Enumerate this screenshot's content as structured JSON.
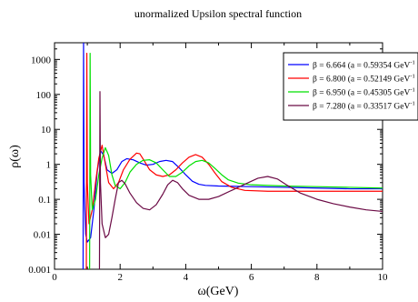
{
  "chart_data": {
    "type": "line",
    "title": "unormalized Upsilon spectral function",
    "xlabel": "ω(GeV)",
    "ylabel": "ρ(ω)",
    "xlim": [
      0,
      10
    ],
    "ylim": [
      0.001,
      3000
    ],
    "yscale": "log",
    "grid": false,
    "legend_position": "top-right",
    "x_ticks": [
      0,
      2,
      4,
      6,
      8,
      10
    ],
    "x_tick_labels": [
      "0",
      "2",
      "4",
      "6",
      "8",
      "10"
    ],
    "y_ticks": [
      0.001,
      0.01,
      0.1,
      1,
      10,
      100,
      1000
    ],
    "y_tick_labels": [
      "0.001",
      "0.01",
      "0.1",
      "1",
      "10",
      "100",
      "1000"
    ],
    "series": [
      {
        "name": "β = 6.664 (a = 0.59354 GeV",
        "name_sup": "-1",
        "color": "#0000ff",
        "points": [
          [
            0.87,
            0.001
          ],
          [
            0.885,
            3000
          ],
          [
            0.9,
            0.3
          ],
          [
            0.95,
            0.01
          ],
          [
            1.0,
            0.006
          ],
          [
            1.1,
            0.008
          ],
          [
            1.2,
            0.05
          ],
          [
            1.3,
            0.6
          ],
          [
            1.4,
            2.5
          ],
          [
            1.5,
            1.8
          ],
          [
            1.6,
            0.7
          ],
          [
            1.75,
            0.55
          ],
          [
            1.9,
            0.7
          ],
          [
            2.05,
            1.2
          ],
          [
            2.2,
            1.45
          ],
          [
            2.4,
            1.35
          ],
          [
            2.6,
            1.1
          ],
          [
            2.8,
            0.95
          ],
          [
            3.0,
            1.0
          ],
          [
            3.2,
            1.2
          ],
          [
            3.4,
            1.3
          ],
          [
            3.6,
            1.2
          ],
          [
            3.8,
            0.8
          ],
          [
            4.0,
            0.5
          ],
          [
            4.2,
            0.33
          ],
          [
            4.4,
            0.27
          ],
          [
            4.6,
            0.25
          ],
          [
            5.0,
            0.24
          ],
          [
            6.0,
            0.23
          ],
          [
            7.0,
            0.22
          ],
          [
            8.0,
            0.21
          ],
          [
            9.0,
            0.2
          ],
          [
            10.0,
            0.2
          ]
        ]
      },
      {
        "name": "β = 6.800 (a = 0.52149 GeV",
        "name_sup": "-1",
        "color": "#ff0000",
        "points": [
          [
            0.97,
            0.001
          ],
          [
            0.985,
            1500
          ],
          [
            1.0,
            0.3
          ],
          [
            1.05,
            0.02
          ],
          [
            1.15,
            0.05
          ],
          [
            1.25,
            0.3
          ],
          [
            1.35,
            1.5
          ],
          [
            1.45,
            3.5
          ],
          [
            1.55,
            1.0
          ],
          [
            1.65,
            0.3
          ],
          [
            1.8,
            0.2
          ],
          [
            1.95,
            0.3
          ],
          [
            2.1,
            0.7
          ],
          [
            2.3,
            1.4
          ],
          [
            2.5,
            2.1
          ],
          [
            2.6,
            2.0
          ],
          [
            2.75,
            1.2
          ],
          [
            2.9,
            0.7
          ],
          [
            3.1,
            0.5
          ],
          [
            3.3,
            0.45
          ],
          [
            3.5,
            0.5
          ],
          [
            3.7,
            0.7
          ],
          [
            3.9,
            1.1
          ],
          [
            4.1,
            1.6
          ],
          [
            4.3,
            1.9
          ],
          [
            4.5,
            1.6
          ],
          [
            4.7,
            1.0
          ],
          [
            4.9,
            0.55
          ],
          [
            5.1,
            0.32
          ],
          [
            5.4,
            0.22
          ],
          [
            5.8,
            0.18
          ],
          [
            6.5,
            0.17
          ],
          [
            7.5,
            0.17
          ],
          [
            8.5,
            0.17
          ],
          [
            10.0,
            0.17
          ]
        ]
      },
      {
        "name": "β = 6.950 (a = 0.45305 GeV",
        "name_sup": "-1",
        "color": "#00e000",
        "points": [
          [
            1.07,
            0.001
          ],
          [
            1.085,
            1500
          ],
          [
            1.1,
            0.5
          ],
          [
            1.15,
            0.05
          ],
          [
            1.25,
            0.1
          ],
          [
            1.35,
            0.5
          ],
          [
            1.45,
            1.5
          ],
          [
            1.55,
            3.0
          ],
          [
            1.65,
            1.8
          ],
          [
            1.75,
            0.5
          ],
          [
            1.85,
            0.25
          ],
          [
            2.0,
            0.2
          ],
          [
            2.15,
            0.3
          ],
          [
            2.3,
            0.6
          ],
          [
            2.5,
            1.0
          ],
          [
            2.7,
            1.3
          ],
          [
            2.9,
            1.35
          ],
          [
            3.1,
            1.1
          ],
          [
            3.3,
            0.7
          ],
          [
            3.5,
            0.45
          ],
          [
            3.7,
            0.45
          ],
          [
            3.9,
            0.6
          ],
          [
            4.1,
            0.9
          ],
          [
            4.3,
            1.2
          ],
          [
            4.5,
            1.3
          ],
          [
            4.7,
            1.1
          ],
          [
            4.9,
            0.75
          ],
          [
            5.1,
            0.5
          ],
          [
            5.3,
            0.36
          ],
          [
            5.6,
            0.29
          ],
          [
            6.0,
            0.26
          ],
          [
            7.0,
            0.24
          ],
          [
            8.0,
            0.23
          ],
          [
            9.0,
            0.22
          ],
          [
            10.0,
            0.21
          ]
        ]
      },
      {
        "name": "β = 7.280 (a = 0.33517 GeV",
        "name_sup": "-1",
        "color": "#6b0a45",
        "points": [
          [
            1.37,
            0.001
          ],
          [
            1.385,
            120
          ],
          [
            1.4,
            0.3
          ],
          [
            1.45,
            0.02
          ],
          [
            1.55,
            0.008
          ],
          [
            1.65,
            0.01
          ],
          [
            1.75,
            0.03
          ],
          [
            1.85,
            0.1
          ],
          [
            1.95,
            0.3
          ],
          [
            2.05,
            0.35
          ],
          [
            2.15,
            0.28
          ],
          [
            2.3,
            0.15
          ],
          [
            2.5,
            0.08
          ],
          [
            2.7,
            0.055
          ],
          [
            2.9,
            0.05
          ],
          [
            3.1,
            0.07
          ],
          [
            3.3,
            0.14
          ],
          [
            3.45,
            0.26
          ],
          [
            3.6,
            0.35
          ],
          [
            3.75,
            0.3
          ],
          [
            3.9,
            0.2
          ],
          [
            4.1,
            0.13
          ],
          [
            4.4,
            0.1
          ],
          [
            4.7,
            0.1
          ],
          [
            5.0,
            0.12
          ],
          [
            5.4,
            0.18
          ],
          [
            5.8,
            0.27
          ],
          [
            6.2,
            0.4
          ],
          [
            6.5,
            0.45
          ],
          [
            6.8,
            0.38
          ],
          [
            7.1,
            0.25
          ],
          [
            7.5,
            0.15
          ],
          [
            8.0,
            0.1
          ],
          [
            8.5,
            0.075
          ],
          [
            9.0,
            0.06
          ],
          [
            9.5,
            0.05
          ],
          [
            10.0,
            0.045
          ]
        ]
      }
    ]
  }
}
